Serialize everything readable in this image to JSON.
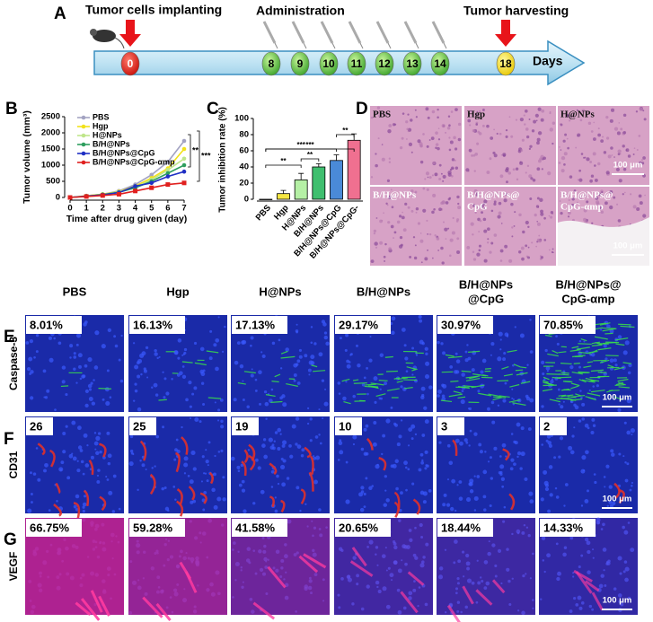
{
  "panel_labels": [
    "A",
    "B",
    "C",
    "D",
    "E",
    "F",
    "G"
  ],
  "timeline": {
    "start_label": "Tumor cells implanting",
    "administration_label": "Administration",
    "harvest_label": "Tumor harvesting",
    "axis_label": "Days",
    "days": [
      0,
      8,
      9,
      10,
      11,
      12,
      13,
      14,
      18
    ]
  },
  "chart_data": [
    {
      "type": "line",
      "y_label": "Tumor volume (mm³)",
      "x_label": "Time after drug given (day)",
      "x": [
        0,
        1,
        2,
        3,
        4,
        5,
        6,
        7
      ],
      "xlim": [
        0,
        7
      ],
      "xticks": [
        0,
        1,
        2,
        3,
        4,
        5,
        6,
        7
      ],
      "ylim": [
        0,
        2500
      ],
      "yticks": [
        0,
        500,
        1000,
        1500,
        2000,
        2500
      ],
      "legend": "top-left",
      "series": [
        {
          "name": "PBS",
          "color": "#a3a3c2",
          "values": [
            0,
            50,
            100,
            200,
            400,
            700,
            1100,
            1750
          ]
        },
        {
          "name": "Hgp",
          "color": "#f2e21a",
          "values": [
            0,
            50,
            100,
            180,
            350,
            600,
            900,
            1500
          ]
        },
        {
          "name": "H@NPs",
          "color": "#bfe68a",
          "values": [
            0,
            40,
            90,
            170,
            320,
            550,
            850,
            1200
          ]
        },
        {
          "name": "B/H@NPs",
          "color": "#2e9e5e",
          "values": [
            0,
            40,
            90,
            160,
            300,
            500,
            750,
            1000
          ]
        },
        {
          "name": "B/H@NPs@CpG",
          "color": "#1f2fc4",
          "values": [
            0,
            40,
            80,
            150,
            350,
            450,
            650,
            800
          ]
        },
        {
          "name": "B/H@NPs@CpG-αmp",
          "color": "#e0201f",
          "values": [
            0,
            30,
            60,
            100,
            200,
            300,
            400,
            450
          ]
        }
      ],
      "annotations": [
        "**",
        "***"
      ]
    },
    {
      "type": "bar",
      "y_label": "Tumor inhibition rate (%)",
      "categories": [
        "PBS",
        "Hgp",
        "H@NPs",
        "B/H@NPs",
        "B/H@NPs@CpG",
        "B/H@NPs@CpG-"
      ],
      "values": [
        0,
        7,
        24,
        40,
        48,
        73
      ],
      "errors": [
        0,
        4,
        8,
        4,
        7,
        8
      ],
      "colors": [
        "#ffffff",
        "#f5e642",
        "#b5f0a5",
        "#3fbf6f",
        "#4a8ad8",
        "#f07090"
      ],
      "ylim": [
        0,
        100
      ],
      "yticks": [
        0,
        20,
        40,
        60,
        80,
        100
      ],
      "annotations": [
        "**",
        "***",
        "***",
        "**",
        "**"
      ]
    }
  ],
  "histology": {
    "labels": [
      [
        "PBS"
      ],
      [
        "Hgp"
      ],
      [
        "H@NPs"
      ],
      [
        "B/H@NPs"
      ],
      [
        "B/H@NPs@",
        "CpG"
      ],
      [
        "B/H@NPs@",
        "CpG-αmp"
      ]
    ],
    "scale_bar": "100 μm"
  },
  "immunofluorescence": {
    "groups": [
      [
        "PBS"
      ],
      [
        "Hgp"
      ],
      [
        "H@NPs"
      ],
      [
        "B/H@NPs"
      ],
      [
        "B/H@NPs",
        "@CpG"
      ],
      [
        "B/H@NPs@",
        "CpG-αmp"
      ]
    ],
    "rows": [
      {
        "marker": "Caspase-3",
        "values": [
          "8.01%",
          "16.13%",
          "17.13%",
          "29.17%",
          "30.97%",
          "70.85%"
        ]
      },
      {
        "marker": "CD31",
        "values": [
          26,
          25,
          19,
          10,
          3,
          2
        ]
      },
      {
        "marker": "VEGF",
        "values": [
          "66.75%",
          "59.28%",
          "41.58%",
          "20.65%",
          "18.44%",
          "14.33%"
        ]
      }
    ],
    "scale_bar": "100 μm"
  }
}
